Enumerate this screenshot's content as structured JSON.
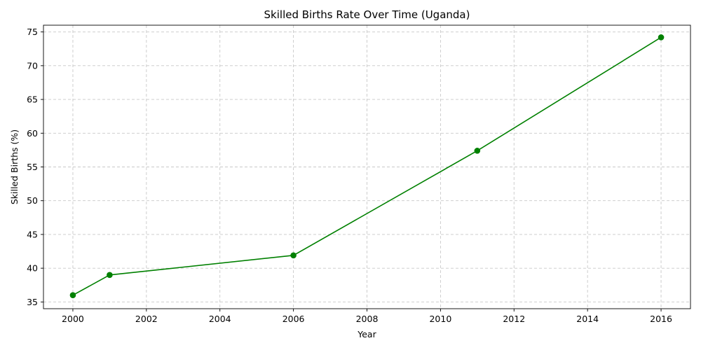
{
  "chart_data": {
    "type": "line",
    "title": "Skilled Births Rate Over Time (Uganda)",
    "xlabel": "Year",
    "ylabel": "Skilled Births (%)",
    "xlim": [
      1999.2,
      2016.8
    ],
    "ylim": [
      34,
      76
    ],
    "xticks": [
      2000,
      2002,
      2004,
      2006,
      2008,
      2010,
      2012,
      2014,
      2016
    ],
    "yticks": [
      35,
      40,
      45,
      50,
      55,
      60,
      65,
      70,
      75
    ],
    "grid": true,
    "series": [
      {
        "color": "#008000",
        "marker": "circle",
        "x": [
          2000,
          2001,
          2006,
          2011,
          2016
        ],
        "y": [
          36.0,
          39.0,
          41.9,
          57.4,
          74.2
        ]
      }
    ]
  }
}
